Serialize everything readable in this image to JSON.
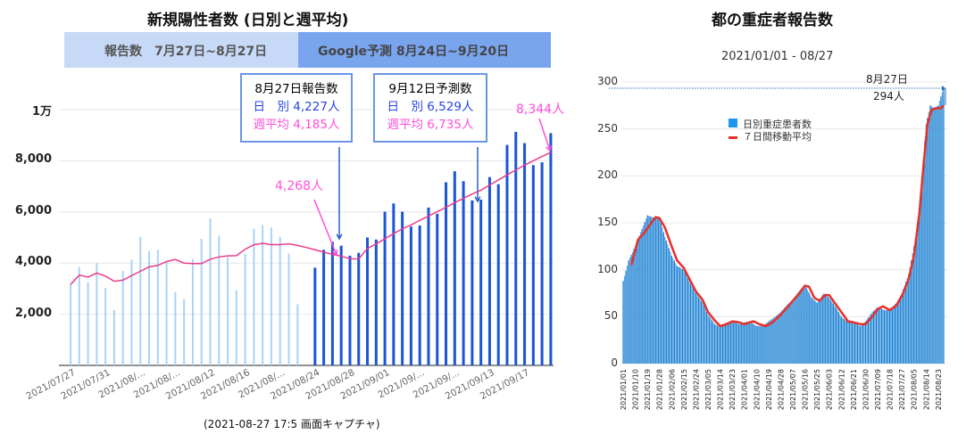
{
  "left": {
    "title": "新規陽性者数 (日別と週平均)",
    "band_reported": "報告数　7月27日~8月27日",
    "band_forecast": "Google予測 8月24日~9月20日",
    "box1": {
      "line1": "8月27日報告数",
      "line2": "日　別 4,227人",
      "line3": "週平均 4,185人"
    },
    "box2": {
      "line1": "9月12日予測数",
      "line2": "日　別 6,529人",
      "line3": "週平均 6,735人"
    },
    "callout_low": "4,268人",
    "callout_end": "8,344人",
    "caption": "(2021-08-27 17:5 画面キャプチャ)"
  },
  "right": {
    "title": "都の重症者報告数",
    "subtitle": "2021/01/01 - 08/27",
    "annotation_date": "8月27日",
    "annotation_value": "294人"
  },
  "chart_data": [
    {
      "type": "bar",
      "title": "新規陽性者数 (日別と週平均)",
      "yticks": [
        "2,000",
        "4,000",
        "6,000",
        "8,000",
        "1万"
      ],
      "ytick_values": [
        2000,
        4000,
        6000,
        8000,
        10000
      ],
      "ylim": [
        0,
        10000
      ],
      "grid": true,
      "xtick_labels": [
        "2021/07/27",
        "2021/07/31",
        "2021/08/...",
        "2021/08/...",
        "2021/08/12",
        "2021/08/16",
        "2021/08/...",
        "2021/08/24",
        "2021/08/28",
        "2021/09/01",
        "2021/09/...",
        "2021/09/...",
        "2021/09/13",
        "2021/09/17"
      ],
      "colors": {
        "reported": "#a9d3f5",
        "forecast": "#1a55d4",
        "average": "#ec3c8c"
      },
      "reported": {
        "start": "2021/07/27",
        "values": [
          3160,
          3850,
          3250,
          4000,
          3020,
          2160,
          3690,
          4140,
          5020,
          4470,
          4520,
          4060,
          2870,
          2590,
          4160,
          4950,
          5750,
          5070,
          4230,
          2940,
          4370,
          5340,
          5490,
          5390,
          5030,
          4370,
          2390
        ]
      },
      "forecast": {
        "start": "2021/08/24",
        "values": [
          3820,
          4520,
          4830,
          4680,
          4290,
          4400,
          5000,
          4920,
          6010,
          6330,
          6010,
          5430,
          5470,
          6170,
          5930,
          7160,
          7590,
          7200,
          6450,
          6480,
          7360,
          7080,
          8620,
          9130,
          8690,
          7830,
          7940,
          9080
        ]
      },
      "weekly_average": {
        "start": "2021/07/27",
        "values": [
          3160,
          3530,
          3450,
          3610,
          3490,
          3290,
          3330,
          3510,
          3680,
          3850,
          3910,
          4060,
          4140,
          4000,
          3980,
          3980,
          4150,
          4240,
          4280,
          4290,
          4540,
          4720,
          4770,
          4720,
          4720,
          4750,
          4690,
          4610,
          4520,
          4430,
          4340,
          4270,
          4170,
          4160,
          4570,
          4750,
          4950,
          5150,
          5340,
          5490,
          5670,
          5840,
          6010,
          6180,
          6360,
          6530,
          6700,
          6850,
          7050,
          7250,
          7450,
          7640,
          7830,
          8000,
          8170,
          8330
        ]
      }
    },
    {
      "type": "bar",
      "title": "都の重症者報告数",
      "subtitle": "2021/01/01 - 08/27",
      "ylim": [
        0,
        300
      ],
      "yticks": [
        "0",
        "50",
        "100",
        "150",
        "200",
        "250",
        "300"
      ],
      "ytick_values": [
        0,
        50,
        100,
        150,
        200,
        250,
        300
      ],
      "grid": true,
      "legend": {
        "position": "top-center",
        "entries": [
          "日別重症患者数",
          "７日間移動平均"
        ]
      },
      "colors": {
        "bars": "#1c7fd2",
        "average": "#e8302a"
      },
      "xtick_labels": [
        "2021/01/01",
        "2021/01/10",
        "2021/01/19",
        "2021/01/28",
        "2021/02/06",
        "2021/02/15",
        "2021/02/24",
        "2021/03/05",
        "2021/03/14",
        "2021/03/23",
        "2021/04/01",
        "2021/04/10",
        "2021/04/19",
        "2021/04/28",
        "2021/05/07",
        "2021/05/16",
        "2021/05/25",
        "2021/06/03",
        "2021/06/12",
        "2021/06/21",
        "2021/06/30",
        "2021/07/09",
        "2021/07/18",
        "2021/07/27",
        "2021/08/05",
        "2021/08/14",
        "2021/08/23"
      ],
      "daily": [
        [
          "2021/01/01",
          88
        ],
        [
          "2021/01/05",
          110
        ],
        [
          "2021/01/10",
          125
        ],
        [
          "2021/01/14",
          140
        ],
        [
          "2021/01/19",
          158
        ],
        [
          "2021/01/24",
          155
        ],
        [
          "2021/01/28",
          155
        ],
        [
          "2021/02/01",
          135
        ],
        [
          "2021/02/06",
          115
        ],
        [
          "2021/02/10",
          104
        ],
        [
          "2021/02/15",
          100
        ],
        [
          "2021/02/20",
          85
        ],
        [
          "2021/02/24",
          75
        ],
        [
          "2021/03/01",
          65
        ],
        [
          "2021/03/05",
          52
        ],
        [
          "2021/03/10",
          42
        ],
        [
          "2021/03/14",
          39
        ],
        [
          "2021/03/19",
          44
        ],
        [
          "2021/03/23",
          45
        ],
        [
          "2021/03/28",
          42
        ],
        [
          "2021/04/01",
          44
        ],
        [
          "2021/04/05",
          45
        ],
        [
          "2021/04/10",
          40
        ],
        [
          "2021/04/15",
          40
        ],
        [
          "2021/04/19",
          45
        ],
        [
          "2021/04/24",
          50
        ],
        [
          "2021/04/28",
          55
        ],
        [
          "2021/05/03",
          63
        ],
        [
          "2021/05/07",
          68
        ],
        [
          "2021/05/12",
          78
        ],
        [
          "2021/05/16",
          84
        ],
        [
          "2021/05/21",
          70
        ],
        [
          "2021/05/25",
          65
        ],
        [
          "2021/05/30",
          75
        ],
        [
          "2021/06/03",
          70
        ],
        [
          "2021/06/08",
          60
        ],
        [
          "2021/06/12",
          50
        ],
        [
          "2021/06/17",
          44
        ],
        [
          "2021/06/21",
          44
        ],
        [
          "2021/06/26",
          40
        ],
        [
          "2021/06/30",
          45
        ],
        [
          "2021/07/05",
          55
        ],
        [
          "2021/07/09",
          60
        ],
        [
          "2021/07/14",
          57
        ],
        [
          "2021/07/18",
          57
        ],
        [
          "2021/07/23",
          65
        ],
        [
          "2021/07/27",
          75
        ],
        [
          "2021/08/01",
          95
        ],
        [
          "2021/08/05",
          125
        ],
        [
          "2021/08/08",
          150
        ],
        [
          "2021/08/11",
          200
        ],
        [
          "2021/08/14",
          255
        ],
        [
          "2021/08/17",
          275
        ],
        [
          "2021/08/20",
          272
        ],
        [
          "2021/08/23",
          275
        ],
        [
          "2021/08/27",
          294
        ]
      ],
      "moving_average": [
        [
          "2021/01/07",
          105
        ],
        [
          "2021/01/12",
          132
        ],
        [
          "2021/01/17",
          140
        ],
        [
          "2021/01/22",
          150
        ],
        [
          "2021/01/25",
          156
        ],
        [
          "2021/01/28",
          155
        ],
        [
          "2021/02/01",
          145
        ],
        [
          "2021/02/06",
          125
        ],
        [
          "2021/02/10",
          110
        ],
        [
          "2021/02/15",
          102
        ],
        [
          "2021/02/20",
          88
        ],
        [
          "2021/02/24",
          77
        ],
        [
          "2021/03/01",
          68
        ],
        [
          "2021/03/05",
          55
        ],
        [
          "2021/03/10",
          46
        ],
        [
          "2021/03/14",
          40
        ],
        [
          "2021/03/19",
          42
        ],
        [
          "2021/03/23",
          45
        ],
        [
          "2021/03/28",
          44
        ],
        [
          "2021/04/01",
          42
        ],
        [
          "2021/04/05",
          44
        ],
        [
          "2021/04/08",
          45
        ],
        [
          "2021/04/12",
          42
        ],
        [
          "2021/04/17",
          40
        ],
        [
          "2021/04/22",
          44
        ],
        [
          "2021/04/28",
          52
        ],
        [
          "2021/05/03",
          60
        ],
        [
          "2021/05/07",
          67
        ],
        [
          "2021/05/12",
          75
        ],
        [
          "2021/05/16",
          83
        ],
        [
          "2021/05/19",
          82
        ],
        [
          "2021/05/23",
          70
        ],
        [
          "2021/05/27",
          67
        ],
        [
          "2021/05/31",
          73
        ],
        [
          "2021/06/03",
          73
        ],
        [
          "2021/06/08",
          63
        ],
        [
          "2021/06/12",
          55
        ],
        [
          "2021/06/17",
          45
        ],
        [
          "2021/06/21",
          44
        ],
        [
          "2021/06/26",
          42
        ],
        [
          "2021/06/30",
          42
        ],
        [
          "2021/07/05",
          50
        ],
        [
          "2021/07/09",
          58
        ],
        [
          "2021/07/13",
          61
        ],
        [
          "2021/07/18",
          57
        ],
        [
          "2021/07/23",
          62
        ],
        [
          "2021/07/27",
          72
        ],
        [
          "2021/08/01",
          90
        ],
        [
          "2021/08/05",
          115
        ],
        [
          "2021/08/09",
          160
        ],
        [
          "2021/08/12",
          210
        ],
        [
          "2021/08/15",
          255
        ],
        [
          "2021/08/18",
          270
        ],
        [
          "2021/08/21",
          272
        ],
        [
          "2021/08/25",
          272
        ],
        [
          "2021/08/27",
          275
        ]
      ]
    }
  ]
}
